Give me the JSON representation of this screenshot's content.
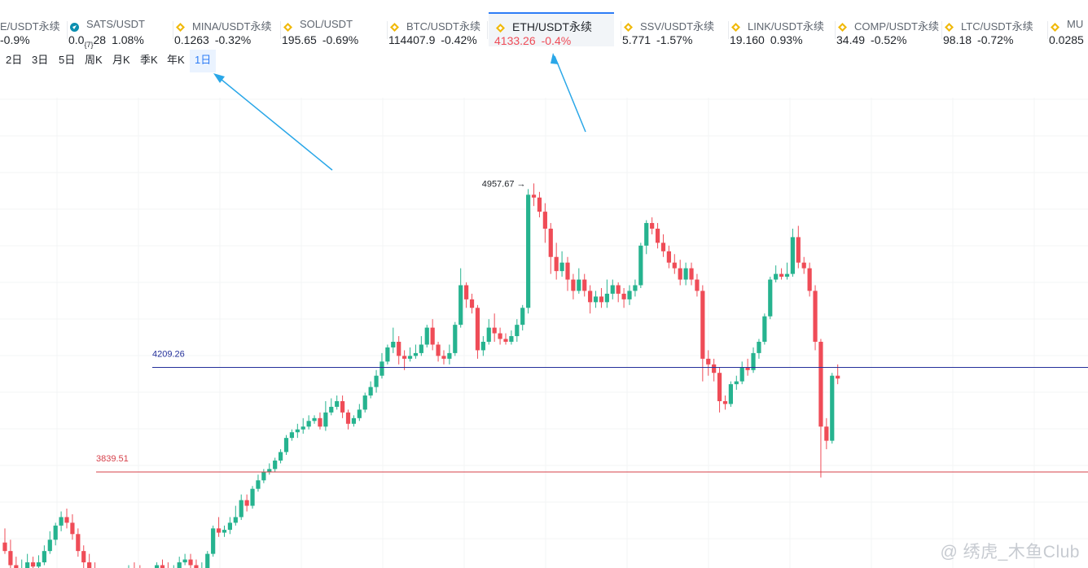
{
  "tickers": [
    {
      "name": "E/USDT永续",
      "price": "",
      "change": "-0.9%",
      "icon": ""
    },
    {
      "name": "SATS/USDT",
      "price": "0.0",
      "sub": "{7}",
      "price_tail": "28",
      "change": "1.08%",
      "icon": "sats-coin-icon"
    },
    {
      "name": "MINA/USDT永续",
      "price": "0.1263",
      "change": "-0.32%",
      "icon": "binance-diamond-icon"
    },
    {
      "name": "SOL/USDT",
      "price": "195.65",
      "change": "-0.69%",
      "icon": "binance-diamond-icon"
    },
    {
      "name": "BTC/USDT永续",
      "price": "114407.9",
      "change": "-0.42%",
      "icon": "binance-diamond-icon"
    },
    {
      "name": "ETH/USDT永续",
      "price": "4133.26",
      "change": "-0.4%",
      "icon": "binance-diamond-icon",
      "active": true
    },
    {
      "name": "SSV/USDT永续",
      "price": "5.771",
      "change": "-1.57%",
      "icon": "binance-diamond-icon"
    },
    {
      "name": "LINK/USDT永续",
      "price": "19.160",
      "change": "0.93%",
      "icon": "binance-diamond-icon"
    },
    {
      "name": "COMP/USDT永续",
      "price": "34.49",
      "change": "-0.52%",
      "icon": "binance-diamond-icon"
    },
    {
      "name": "LTC/USDT永续",
      "price": "98.18",
      "change": "-0.72%",
      "icon": "binance-diamond-icon"
    },
    {
      "name": "MU",
      "price": "0.0285",
      "change": "",
      "icon": "binance-diamond-icon"
    }
  ],
  "periods": [
    "2日",
    "3日",
    "5日",
    "周K",
    "月K",
    "季K",
    "年K",
    "1日"
  ],
  "active_period": "1日",
  "colors": {
    "up": "#26b38f",
    "down": "#ef4c57",
    "accent": "#2d7cf6",
    "level_blue": "#24309a",
    "level_red": "#d6404a",
    "arrow": "#2aa7e8"
  },
  "chart_data": {
    "type": "candlestick",
    "y_range": [
      3500,
      5100
    ],
    "annotations": {
      "high_label": "4957.67",
      "level_blue": {
        "label": "4209.26",
        "value": 4209.26
      },
      "level_red": {
        "label": "3839.51",
        "value": 3839.51
      }
    },
    "candles": [
      [
        3590,
        3560,
        3640,
        3550
      ],
      [
        3560,
        3510,
        3600,
        3490
      ],
      [
        3510,
        3470,
        3540,
        3440
      ],
      [
        3480,
        3500,
        3530,
        3460
      ],
      [
        3500,
        3520,
        3550,
        3490
      ],
      [
        3520,
        3505,
        3540,
        3490
      ],
      [
        3505,
        3520,
        3545,
        3495
      ],
      [
        3520,
        3560,
        3580,
        3510
      ],
      [
        3560,
        3600,
        3630,
        3550
      ],
      [
        3600,
        3650,
        3660,
        3580
      ],
      [
        3650,
        3680,
        3700,
        3630
      ],
      [
        3680,
        3660,
        3710,
        3640
      ],
      [
        3660,
        3620,
        3690,
        3600
      ],
      [
        3620,
        3560,
        3640,
        3540
      ],
      [
        3560,
        3520,
        3580,
        3500
      ],
      [
        3520,
        3500,
        3550,
        3480
      ],
      [
        3500,
        3470,
        3520,
        3450
      ],
      [
        3470,
        3450,
        3490,
        3430
      ],
      [
        3450,
        3460,
        3480,
        3440
      ],
      [
        3460,
        3440,
        3480,
        3430
      ],
      [
        3440,
        3450,
        3470,
        3420
      ],
      [
        3450,
        3470,
        3490,
        3440
      ],
      [
        3470,
        3500,
        3510,
        3460
      ],
      [
        3500,
        3490,
        3520,
        3470
      ],
      [
        3490,
        3480,
        3510,
        3470
      ],
      [
        3480,
        3470,
        3500,
        3460
      ],
      [
        3470,
        3490,
        3500,
        3460
      ],
      [
        3490,
        3510,
        3520,
        3480
      ],
      [
        3510,
        3500,
        3530,
        3490
      ],
      [
        3500,
        3480,
        3520,
        3470
      ],
      [
        3480,
        3500,
        3510,
        3470
      ],
      [
        3500,
        3520,
        3540,
        3490
      ],
      [
        3520,
        3530,
        3550,
        3510
      ],
      [
        3530,
        3510,
        3550,
        3500
      ],
      [
        3510,
        3490,
        3530,
        3480
      ],
      [
        3490,
        3500,
        3520,
        3480
      ],
      [
        3500,
        3550,
        3560,
        3490
      ],
      [
        3550,
        3640,
        3650,
        3540
      ],
      [
        3640,
        3625,
        3680,
        3610
      ],
      [
        3625,
        3635,
        3650,
        3610
      ],
      [
        3635,
        3660,
        3680,
        3620
      ],
      [
        3660,
        3680,
        3720,
        3650
      ],
      [
        3680,
        3740,
        3760,
        3670
      ],
      [
        3740,
        3720,
        3760,
        3700
      ],
      [
        3720,
        3780,
        3790,
        3710
      ],
      [
        3780,
        3810,
        3830,
        3770
      ],
      [
        3810,
        3840,
        3850,
        3800
      ],
      [
        3840,
        3850,
        3870,
        3830
      ],
      [
        3850,
        3880,
        3890,
        3840
      ],
      [
        3880,
        3910,
        3920,
        3870
      ],
      [
        3910,
        3960,
        3970,
        3900
      ],
      [
        3960,
        3980,
        3990,
        3950
      ],
      [
        3980,
        3990,
        4010,
        3960
      ],
      [
        3990,
        4000,
        4030,
        3975
      ],
      [
        4000,
        4020,
        4040,
        3990
      ],
      [
        4020,
        4030,
        4040,
        4010
      ],
      [
        4030,
        4000,
        4050,
        3990
      ],
      [
        4000,
        4050,
        4090,
        3985
      ],
      [
        4050,
        4070,
        4100,
        4040
      ],
      [
        4070,
        4090,
        4110,
        4060
      ],
      [
        4090,
        4050,
        4110,
        4030
      ],
      [
        4050,
        4010,
        4060,
        3990
      ],
      [
        4010,
        4030,
        4040,
        4000
      ],
      [
        4030,
        4060,
        4080,
        4020
      ],
      [
        4060,
        4110,
        4120,
        4050
      ],
      [
        4110,
        4140,
        4160,
        4100
      ],
      [
        4140,
        4180,
        4200,
        4120
      ],
      [
        4180,
        4230,
        4260,
        4170
      ],
      [
        4230,
        4280,
        4290,
        4220
      ],
      [
        4280,
        4300,
        4350,
        4260
      ],
      [
        4300,
        4250,
        4320,
        4220
      ],
      [
        4250,
        4240,
        4270,
        4200
      ],
      [
        4240,
        4250,
        4280,
        4230
      ],
      [
        4250,
        4260,
        4290,
        4240
      ],
      [
        4260,
        4290,
        4320,
        4250
      ],
      [
        4290,
        4350,
        4360,
        4280
      ],
      [
        4350,
        4290,
        4380,
        4270
      ],
      [
        4290,
        4250,
        4300,
        4230
      ],
      [
        4250,
        4240,
        4270,
        4220
      ],
      [
        4240,
        4260,
        4290,
        4220
      ],
      [
        4260,
        4360,
        4370,
        4250
      ],
      [
        4360,
        4500,
        4560,
        4350
      ],
      [
        4500,
        4450,
        4510,
        4420
      ],
      [
        4450,
        4420,
        4470,
        4400
      ],
      [
        4420,
        4270,
        4430,
        4240
      ],
      [
        4270,
        4300,
        4320,
        4250
      ],
      [
        4300,
        4350,
        4380,
        4290
      ],
      [
        4350,
        4330,
        4400,
        4300
      ],
      [
        4330,
        4310,
        4350,
        4290
      ],
      [
        4310,
        4300,
        4330,
        4290
      ],
      [
        4300,
        4320,
        4340,
        4290
      ],
      [
        4320,
        4360,
        4380,
        4300
      ],
      [
        4360,
        4420,
        4430,
        4340
      ],
      [
        4420,
        4820,
        4840,
        4400
      ],
      [
        4820,
        4810,
        4860,
        4780
      ],
      [
        4810,
        4760,
        4830,
        4740
      ],
      [
        4760,
        4700,
        4790,
        4650
      ],
      [
        4700,
        4600,
        4720,
        4540
      ],
      [
        4600,
        4550,
        4650,
        4520
      ],
      [
        4550,
        4580,
        4620,
        4530
      ],
      [
        4580,
        4520,
        4600,
        4480
      ],
      [
        4520,
        4480,
        4540,
        4450
      ],
      [
        4480,
        4520,
        4560,
        4470
      ],
      [
        4520,
        4480,
        4540,
        4460
      ],
      [
        4480,
        4440,
        4500,
        4400
      ],
      [
        4440,
        4460,
        4480,
        4420
      ],
      [
        4460,
        4440,
        4490,
        4420
      ],
      [
        4440,
        4470,
        4520,
        4420
      ],
      [
        4470,
        4500,
        4520,
        4450
      ],
      [
        4500,
        4470,
        4510,
        4440
      ],
      [
        4470,
        4450,
        4490,
        4420
      ],
      [
        4450,
        4480,
        4500,
        4430
      ],
      [
        4480,
        4500,
        4520,
        4460
      ],
      [
        4500,
        4640,
        4650,
        4490
      ],
      [
        4640,
        4720,
        4730,
        4610
      ],
      [
        4720,
        4700,
        4740,
        4680
      ],
      [
        4700,
        4650,
        4720,
        4630
      ],
      [
        4650,
        4620,
        4680,
        4600
      ],
      [
        4620,
        4580,
        4640,
        4560
      ],
      [
        4580,
        4560,
        4610,
        4540
      ],
      [
        4560,
        4520,
        4590,
        4500
      ],
      [
        4520,
        4560,
        4580,
        4500
      ],
      [
        4560,
        4520,
        4580,
        4500
      ],
      [
        4520,
        4480,
        4540,
        4460
      ],
      [
        4480,
        4240,
        4500,
        4160
      ],
      [
        4240,
        4220,
        4270,
        4180
      ],
      [
        4220,
        4190,
        4240,
        4160
      ],
      [
        4190,
        4090,
        4210,
        4050
      ],
      [
        4090,
        4080,
        4110,
        4060
      ],
      [
        4080,
        4150,
        4160,
        4070
      ],
      [
        4150,
        4160,
        4180,
        4130
      ],
      [
        4160,
        4210,
        4230,
        4150
      ],
      [
        4210,
        4200,
        4240,
        4180
      ],
      [
        4200,
        4260,
        4280,
        4190
      ],
      [
        4260,
        4300,
        4310,
        4240
      ],
      [
        4300,
        4390,
        4400,
        4290
      ],
      [
        4390,
        4520,
        4530,
        4380
      ],
      [
        4520,
        4540,
        4570,
        4510
      ],
      [
        4540,
        4530,
        4560,
        4520
      ],
      [
        4530,
        4540,
        4580,
        4520
      ],
      [
        4540,
        4670,
        4700,
        4530
      ],
      [
        4670,
        4580,
        4710,
        4560
      ],
      [
        4580,
        4560,
        4600,
        4540
      ],
      [
        4560,
        4480,
        4580,
        4460
      ],
      [
        4480,
        4300,
        4500,
        4270
      ],
      [
        4300,
        4000,
        4310,
        3820
      ],
      [
        4000,
        3950,
        4030,
        3920
      ],
      [
        3950,
        4180,
        4190,
        3940
      ],
      [
        4180,
        4170,
        4220,
        4150
      ]
    ]
  },
  "watermark": "@ 绣虎_木鱼Club"
}
